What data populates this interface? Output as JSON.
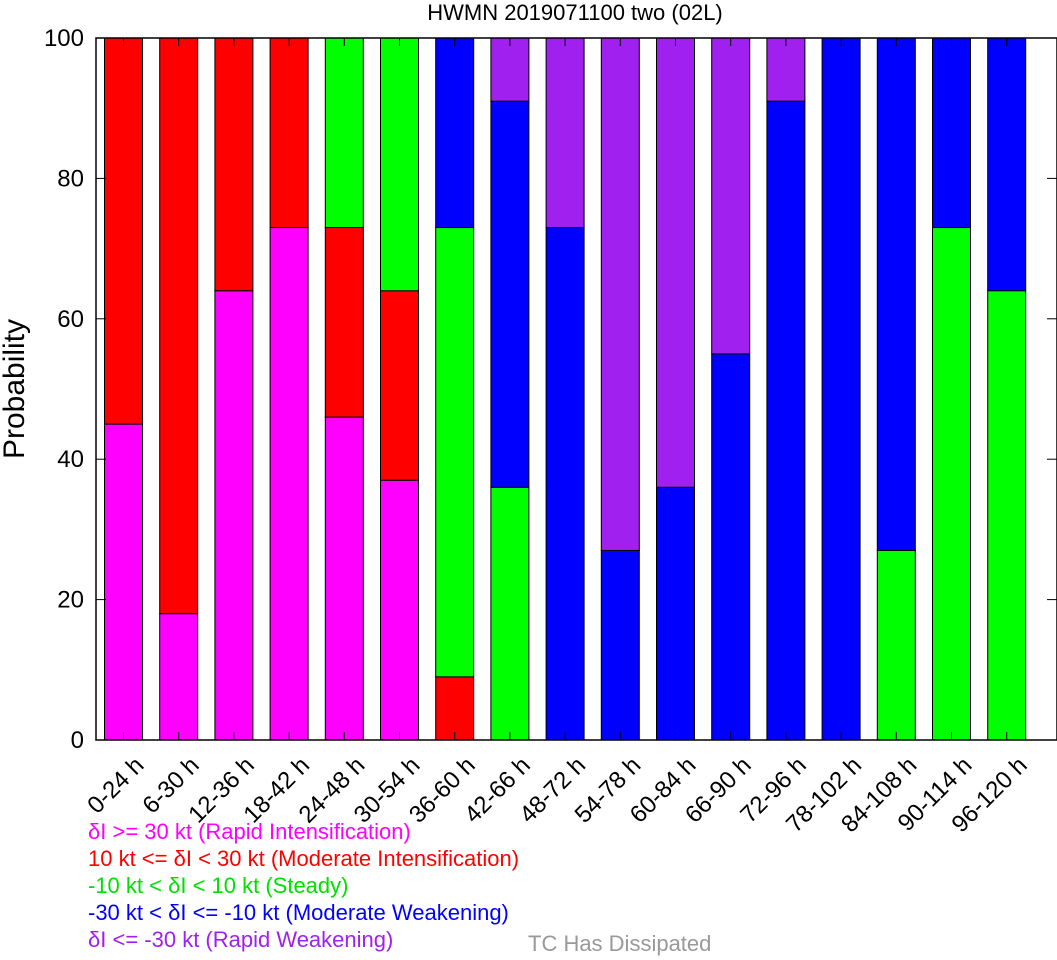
{
  "chart_data": {
    "type": "bar",
    "stacked": true,
    "title": "HWMN 2019071100 two (02L)",
    "ylabel": "Probability",
    "ylim": [
      0,
      100
    ],
    "yticks": [
      "0",
      "20",
      "40",
      "60",
      "80",
      "100"
    ],
    "categories": [
      "0-24 h",
      "6-30 h",
      "12-36 h",
      "18-42 h",
      "24-48 h",
      "30-54 h",
      "36-60 h",
      "42-66 h",
      "48-72 h",
      "54-78 h",
      "60-84 h",
      "66-90 h",
      "72-96 h",
      "78-102 h",
      "84-108 h",
      "90-114 h",
      "96-120 h"
    ],
    "series": [
      {
        "name": "δI >= 30 kt (Rapid Intensification)",
        "color": "#ff00ff",
        "values": [
          45,
          18,
          64,
          73,
          46,
          37,
          0,
          0,
          0,
          0,
          0,
          0,
          0,
          0,
          0,
          0,
          0
        ]
      },
      {
        "name": "10 kt <= δI < 30 kt (Moderate Intensification)",
        "color": "#ff0000",
        "values": [
          55,
          82,
          36,
          27,
          27,
          27,
          9,
          0,
          0,
          0,
          0,
          0,
          0,
          0,
          0,
          0,
          0
        ]
      },
      {
        "name": "-10 kt < δI < 10 kt (Steady)",
        "color": "#00ff00",
        "values": [
          0,
          0,
          0,
          0,
          27,
          36,
          64,
          36,
          0,
          0,
          0,
          0,
          0,
          0,
          27,
          73,
          64
        ]
      },
      {
        "name": "-30 kt < δI <= -10 kt (Moderate Weakening)",
        "color": "#0000ff",
        "values": [
          0,
          0,
          0,
          0,
          0,
          0,
          27,
          55,
          73,
          27,
          36,
          55,
          91,
          100,
          73,
          27,
          36
        ]
      },
      {
        "name": "δI <= -30 kt (Rapid Weakening)",
        "color": "#a020f0",
        "values": [
          0,
          0,
          0,
          0,
          0,
          0,
          0,
          9,
          27,
          73,
          64,
          45,
          9,
          0,
          0,
          0,
          0
        ]
      }
    ],
    "extra_legend": {
      "label": "TC Has Dissipated",
      "color": "#999999"
    }
  }
}
